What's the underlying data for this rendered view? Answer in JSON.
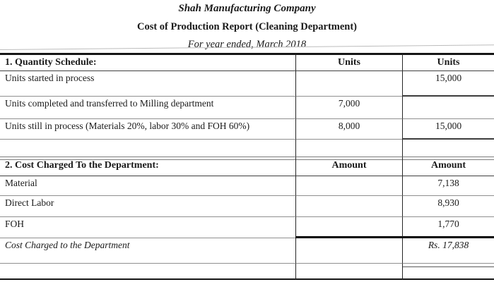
{
  "header": {
    "company": "Shah Manufacturing Company",
    "report_title": "Cost of Production Report (Cleaning Department)",
    "period": "For year ended, March 2018"
  },
  "table": {
    "rows": [
      {
        "label": "1. Quantity Schedule:",
        "col2": "Units",
        "col3": "Units"
      },
      {
        "label": "Units started in process",
        "col2": "",
        "col3": "15,000"
      },
      {
        "label": "Units completed and transferred to Milling department",
        "col2": "7,000",
        "col3": ""
      },
      {
        "label": "Units still in process (Materials 20%, labor 30% and FOH 60%)",
        "col2": "8,000",
        "col3": "15,000"
      },
      {
        "label": "",
        "col2": "",
        "col3": ""
      },
      {
        "label": "2. Cost Charged To the Department:",
        "col2": "Amount",
        "col3": "Amount"
      },
      {
        "label": "Material",
        "col2": "",
        "col3": "7,138"
      },
      {
        "label": "Direct Labor",
        "col2": "",
        "col3": "8,930"
      },
      {
        "label": "FOH",
        "col2": "",
        "col3": "1,770"
      },
      {
        "label": "Cost Charged to the Department",
        "col2": "",
        "col3": "Rs. 17,838"
      },
      {
        "label": "",
        "col2": "",
        "col3": ""
      }
    ]
  }
}
